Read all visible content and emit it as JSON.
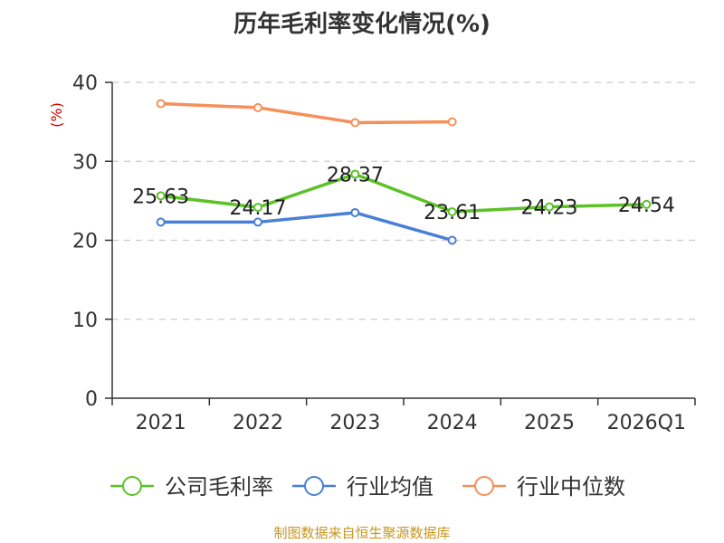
{
  "title": "历年毛利率变化情况(%)",
  "source": "制图数据来自恒生聚源数据库",
  "colors": {
    "company": "#5bc227",
    "industry_avg": "#4a7fd6",
    "industry_median": "#f5905a",
    "unit_label": "#cc0000",
    "source": "#c8961e"
  },
  "chart_data": {
    "type": "line",
    "title": "历年毛利率变化情况(%)",
    "ylabel": "(%)",
    "xlabel": "",
    "categories": [
      "2021",
      "2022",
      "2023",
      "2024",
      "2025",
      "2026Q1"
    ],
    "yticks": [
      "0",
      "10",
      "20",
      "30",
      "40"
    ],
    "ylim": [
      0,
      40
    ],
    "grid": true,
    "legend_position": "bottom",
    "series": [
      {
        "name": "公司毛利率",
        "values": [
          25.63,
          24.17,
          28.37,
          23.61,
          24.23,
          24.54
        ],
        "labels": [
          "25.63",
          "24.17",
          "28.37",
          "23.61",
          "24.23",
          "24.54"
        ]
      },
      {
        "name": "行业均值",
        "values": [
          22.3,
          22.3,
          23.5,
          20.0,
          null,
          null
        ]
      },
      {
        "name": "行业中位数",
        "values": [
          37.3,
          36.8,
          34.9,
          35.0,
          null,
          null
        ]
      }
    ]
  }
}
